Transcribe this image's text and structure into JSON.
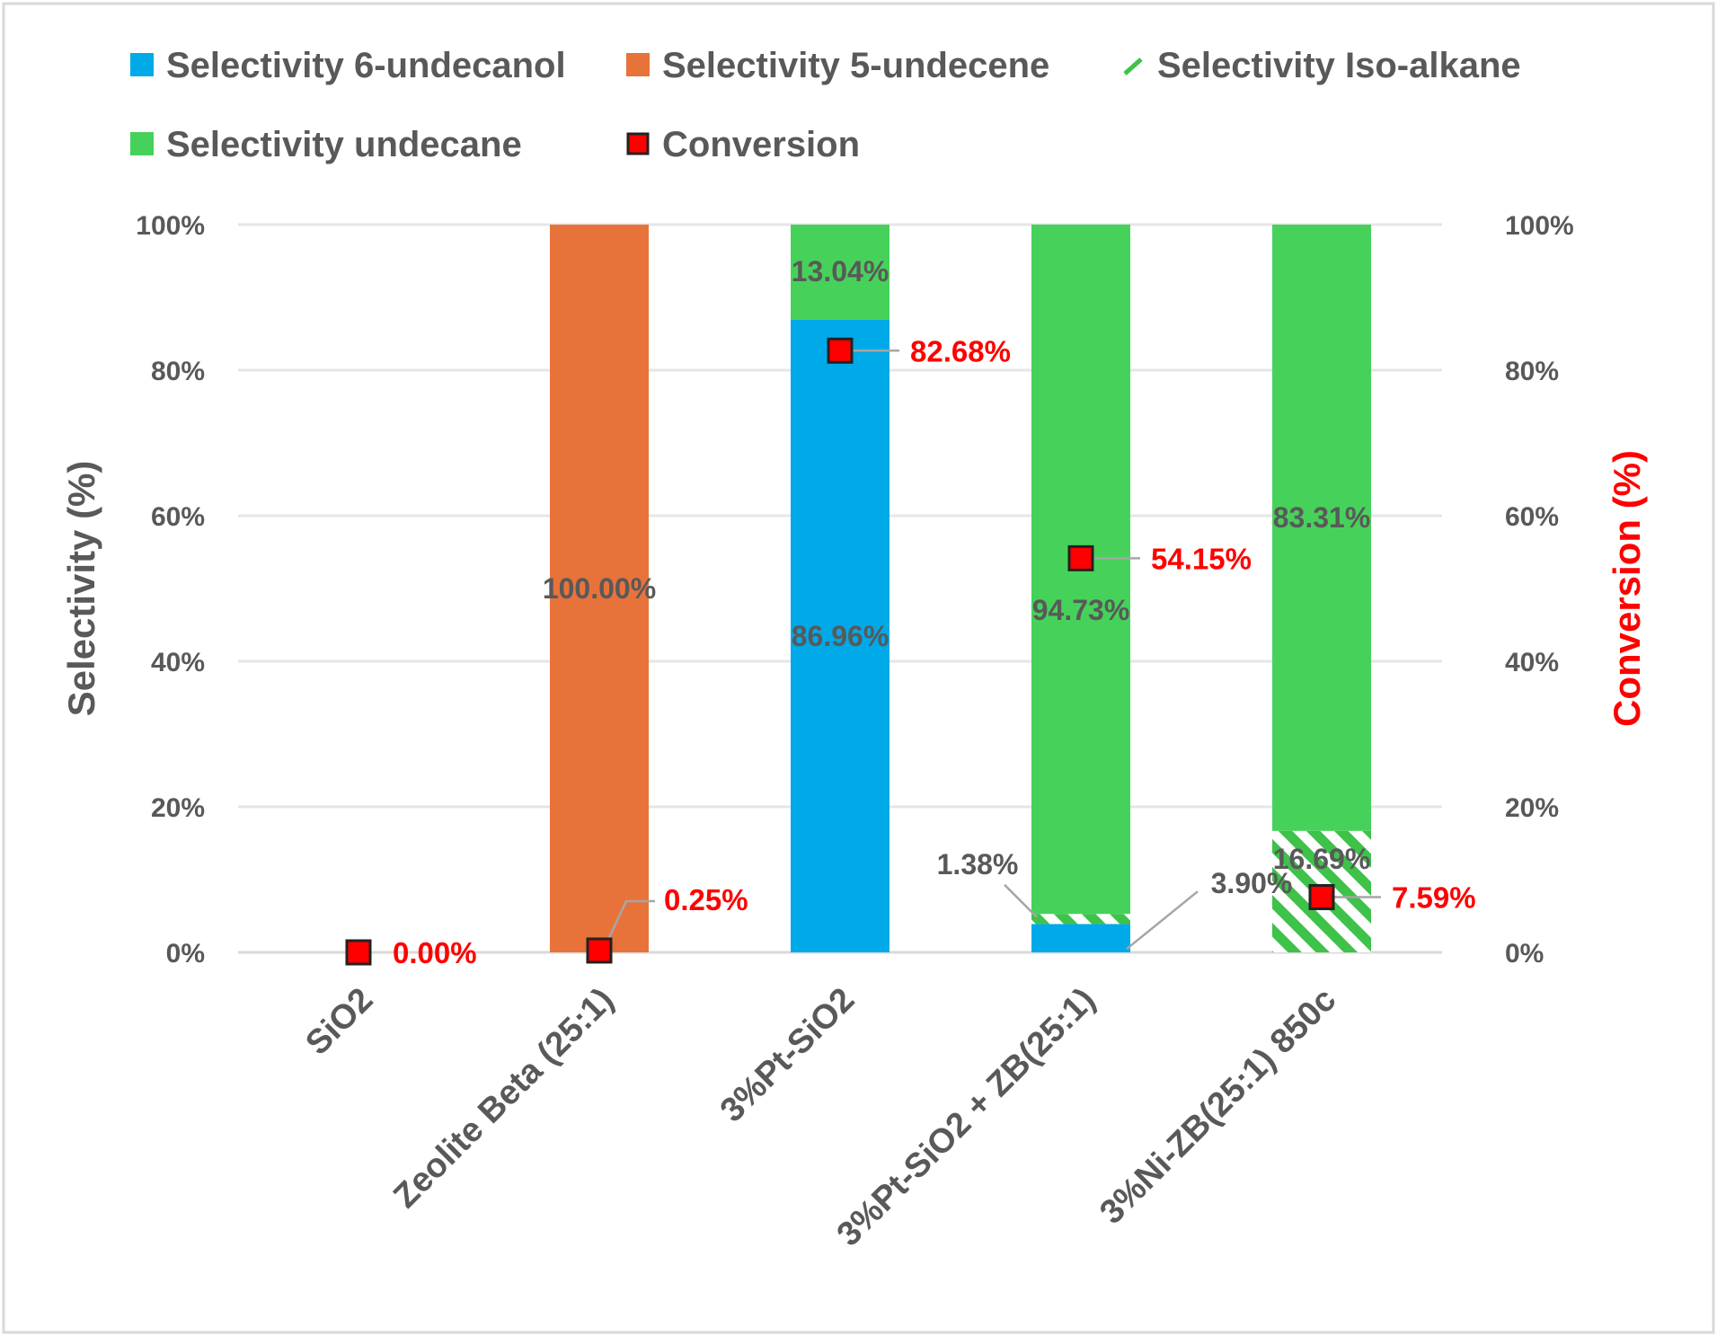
{
  "chart_data": {
    "type": "bar",
    "stacked": true,
    "categories": [
      "SiO2",
      "Zeolite Beta (25:1)",
      "3%Pt-SiO2",
      "3%Pt-SiO2 + ZB(25:1)",
      "3%Ni-ZB(25:1) 850c"
    ],
    "series": [
      {
        "name": "Selectivity 6-undecanol",
        "color": "#00a9e8",
        "pattern": "solid",
        "values": [
          0,
          0,
          86.96,
          3.9,
          0
        ],
        "labels": [
          "",
          "",
          "86.96%",
          "3.90%",
          ""
        ]
      },
      {
        "name": "Selectivity 5-undecene",
        "color": "#e8733a",
        "pattern": "solid",
        "values": [
          0,
          100.0,
          0,
          0,
          0
        ],
        "labels": [
          "",
          "100.00%",
          "",
          "",
          ""
        ]
      },
      {
        "name": "Selectivity Iso-alkane",
        "color": "#3ec24a",
        "pattern": "hatch",
        "values": [
          0,
          0,
          0,
          1.38,
          16.69
        ],
        "labels": [
          "",
          "",
          "",
          "1.38%",
          "16.69%"
        ]
      },
      {
        "name": "Selectivity undecane",
        "color": "#46d25a",
        "pattern": "solid",
        "values": [
          0,
          0,
          13.04,
          94.73,
          83.31
        ],
        "labels": [
          "",
          "",
          "13.04%",
          "94.73%",
          "83.31%"
        ]
      }
    ],
    "conversion": {
      "name": "Conversion",
      "color": "#ff0000",
      "marker": "square",
      "values": [
        0.0,
        0.25,
        82.68,
        54.15,
        7.59
      ],
      "labels": [
        "0.00%",
        "0.25%",
        "82.68%",
        "54.15%",
        "7.59%"
      ]
    },
    "ylabel": "Selectivity (%)",
    "y2label": "Conversion (%)",
    "ylim": [
      0,
      100
    ],
    "y2lim": [
      0,
      100
    ],
    "yticks": [
      "0%",
      "20%",
      "40%",
      "60%",
      "80%",
      "100%"
    ],
    "y2ticks": [
      "0%",
      "20%",
      "40%",
      "60%",
      "80%",
      "100%"
    ],
    "grid": true,
    "legend_position": "top"
  }
}
